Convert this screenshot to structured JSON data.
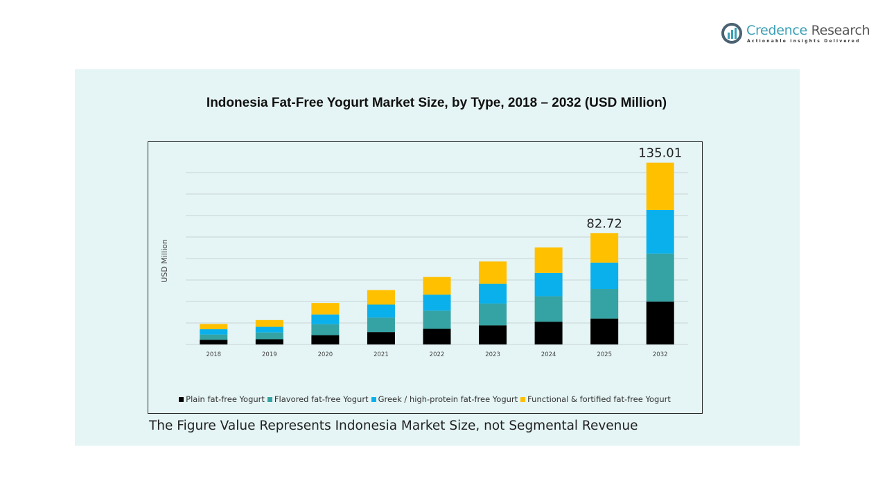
{
  "logo": {
    "name_part1": "Credence",
    "name_part2": " Research",
    "tagline": "Actionable Insights Delivered"
  },
  "footnote": "The Figure Value Represents Indonesia Market Size, not Segmental Revenue",
  "chart_data": {
    "type": "bar",
    "stacked": true,
    "title": "Indonesia Fat-Free Yogurt Market Size, by Type, 2018 – 2032 (USD Million)",
    "xlabel": "",
    "ylabel": "USD Million",
    "ylim": [
      0,
      140
    ],
    "grid": true,
    "legend_position": "bottom",
    "categories": [
      "2018",
      "2019",
      "2020",
      "2021",
      "2022",
      "2023",
      "2024",
      "2025",
      "2032"
    ],
    "series": [
      {
        "name": "Plain fat-free Yogurt",
        "color": "#000000",
        "values": [
          3.5,
          3.9,
          6.9,
          9.2,
          11.6,
          14.2,
          16.9,
          19.24,
          31.8
        ]
      },
      {
        "name": "Flavored fat-free Yogurt",
        "color": "#35a3a3",
        "values": [
          3.9,
          5.0,
          8.1,
          10.8,
          13.5,
          16.2,
          18.9,
          21.93,
          35.7
        ]
      },
      {
        "name": "Greek / high-protein fat-free Yogurt",
        "color": "#0ab0ec",
        "values": [
          3.9,
          4.2,
          7.3,
          9.6,
          11.9,
          14.6,
          17.3,
          19.62,
          32.4
        ]
      },
      {
        "name": "Functional & fortified fat-free Yogurt",
        "color": "#ffc000",
        "values": [
          3.9,
          5.0,
          8.5,
          10.8,
          13.1,
          16.6,
          18.9,
          21.93,
          35.11
        ]
      }
    ],
    "data_labels": [
      {
        "category": "2025",
        "text": "82.72"
      },
      {
        "category": "2032",
        "text": "135.01"
      }
    ]
  }
}
